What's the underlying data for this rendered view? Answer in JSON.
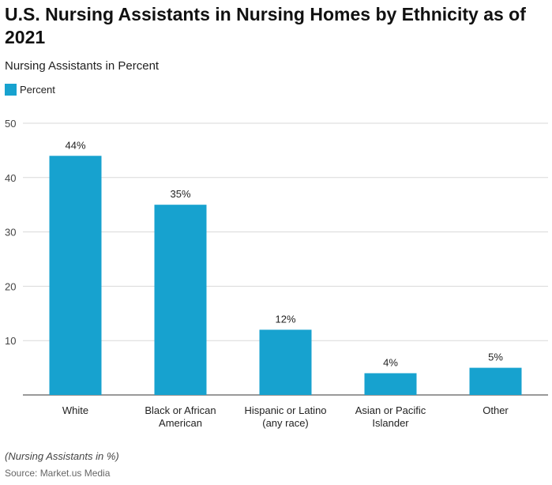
{
  "title": "U.S. Nursing Assistants in Nursing Homes by Ethnicity as of 2021",
  "subtitle": "Nursing Assistants in Percent",
  "note": "(Nursing Assistants in %)",
  "source": "Source: Market.us Media",
  "chart_data": {
    "type": "bar",
    "categories": [
      [
        "White"
      ],
      [
        "Black or African",
        "American"
      ],
      [
        "Hispanic or Latino",
        "(any race)"
      ],
      [
        "Asian or Pacific",
        "Islander"
      ],
      [
        "Other"
      ]
    ],
    "series": [
      {
        "name": "Percent",
        "values": [
          44,
          35,
          12,
          4,
          5
        ],
        "labels": [
          "44%",
          "35%",
          "12%",
          "4%",
          "5%"
        ],
        "color": "#17a2cf"
      }
    ],
    "ylim": [
      0,
      50
    ],
    "yticks": [
      10,
      20,
      30,
      40,
      50
    ],
    "grid": true,
    "legend": "top-left"
  }
}
